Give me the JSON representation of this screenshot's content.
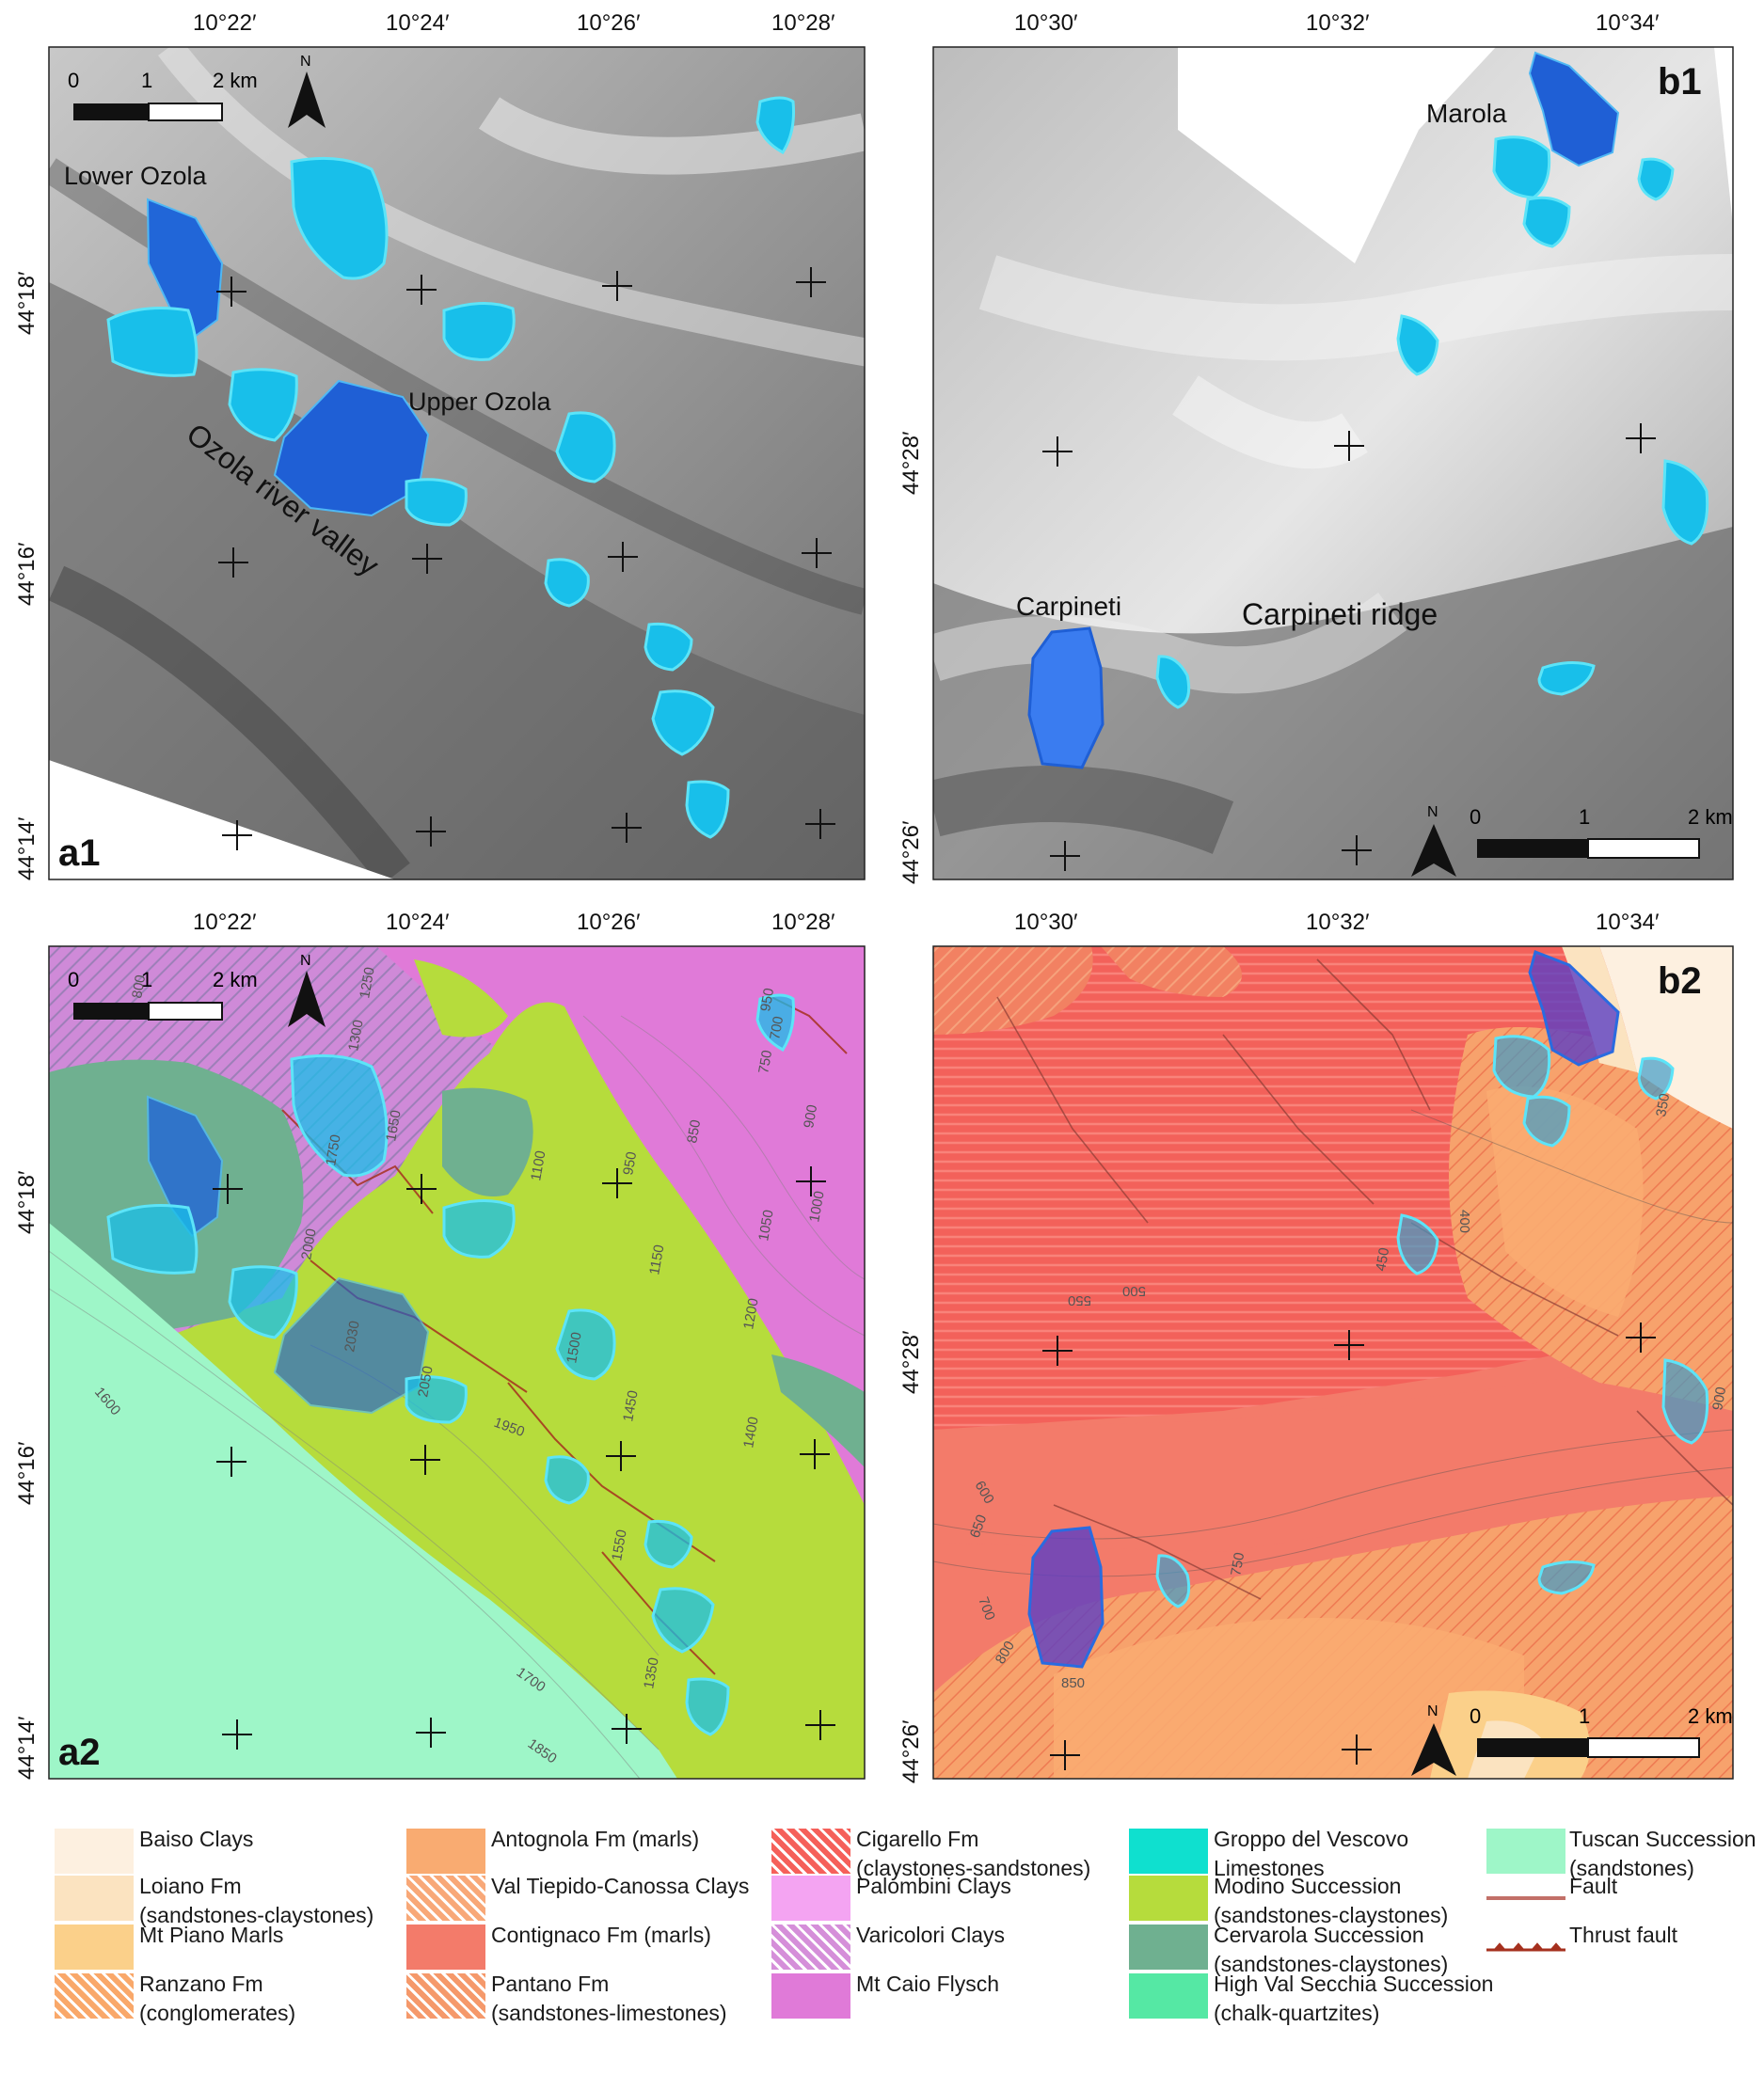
{
  "panels": {
    "a1": {
      "label": "a1"
    },
    "b1": {
      "label": "b1"
    },
    "a2": {
      "label": "a2"
    },
    "b2": {
      "label": "b2"
    }
  },
  "coordinates": {
    "a_lon": [
      "10°22′",
      "10°24′",
      "10°26′",
      "10°28′"
    ],
    "a_lat": [
      "44°18′",
      "44°16′",
      "44°14′"
    ],
    "b_lon": [
      "10°30′",
      "10°32′",
      "10°34′"
    ],
    "b_lat": [
      "44°28′",
      "44°26′"
    ]
  },
  "scale_bar": {
    "zero": "0",
    "one": "1",
    "two": "2 km"
  },
  "north_arrow": {
    "label": "N"
  },
  "place_labels": {
    "lower_ozola": "Lower Ozola",
    "upper_ozola": "Upper Ozola",
    "ozola_valley": "Ozola river valley",
    "marola": "Marola",
    "carpineti": "Carpineti",
    "carpineti_ridge": "Carpineti ridge"
  },
  "contour_labels_a2": [
    "800",
    "1300",
    "1250",
    "950",
    "700",
    "750",
    "1650",
    "1750",
    "850",
    "900",
    "1100",
    "950",
    "1000",
    "1050",
    "2000",
    "1150",
    "1200",
    "2030",
    "2050",
    "1500",
    "1450",
    "1600",
    "1950",
    "1400",
    "1550",
    "1350",
    "1700",
    "1850"
  ],
  "contour_labels_b2": [
    "350",
    "400",
    "450",
    "500",
    "550",
    "600",
    "650",
    "700",
    "750",
    "800",
    "850",
    "900"
  ],
  "legend": [
    {
      "label": "Baiso Clays",
      "color": "#fdf0e0",
      "hatch": false
    },
    {
      "label": "Loiano Fm\n(sandstones-claystones)",
      "color": "#fbe3c0",
      "hatch": false
    },
    {
      "label": "Mt Piano Marls",
      "color": "#fbd08a",
      "hatch": false
    },
    {
      "label": "Ranzano Fm\n(conglomerates)",
      "color": "#f9a86a",
      "hatch": true
    },
    {
      "label": "Antognola Fm (marls)",
      "color": "#f9ab71",
      "hatch": false
    },
    {
      "label": "Val Tiepido-Canossa Clays",
      "color": "#f8a878",
      "hatch": true
    },
    {
      "label": "Contignaco Fm (marls)",
      "color": "#f37b6a",
      "hatch": false
    },
    {
      "label": "Pantano Fm\n(sandstones-limestones)",
      "color": "#f5996b",
      "hatch": true
    },
    {
      "label": "Cigarello Fm\n(claystones-sandstones)",
      "color": "#f5605a",
      "hatch": true
    },
    {
      "label": "Palombini Clays",
      "color": "#f4a4f2",
      "hatch": false
    },
    {
      "label": "Varicolori Clays",
      "color": "#d58fd9",
      "hatch": true
    },
    {
      "label": "Mt Caio Flysch",
      "color": "#e07ad8",
      "hatch": false
    },
    {
      "label": "Groppo del Vescovo\nLimestones",
      "color": "#0fe0cf",
      "hatch": false
    },
    {
      "label": "Modino Succession\n(sandstones-claystones)",
      "color": "#b6dc3c",
      "hatch": false
    },
    {
      "label": "Cervarola Succession\n(sandstones-claystones)",
      "color": "#6fb090",
      "hatch": false
    },
    {
      "label": "High Val Secchia Succession\n(chalk-quartzites)",
      "color": "#55e8a4",
      "hatch": false
    },
    {
      "label": "Tuscan Succession\n(sandstones)",
      "color": "#9ef6c8",
      "hatch": false
    },
    {
      "label": "Fault",
      "color": "#c27068",
      "hatch": false
    },
    {
      "label": "Thrust fault",
      "color": "#a5301e",
      "hatch": false
    }
  ]
}
